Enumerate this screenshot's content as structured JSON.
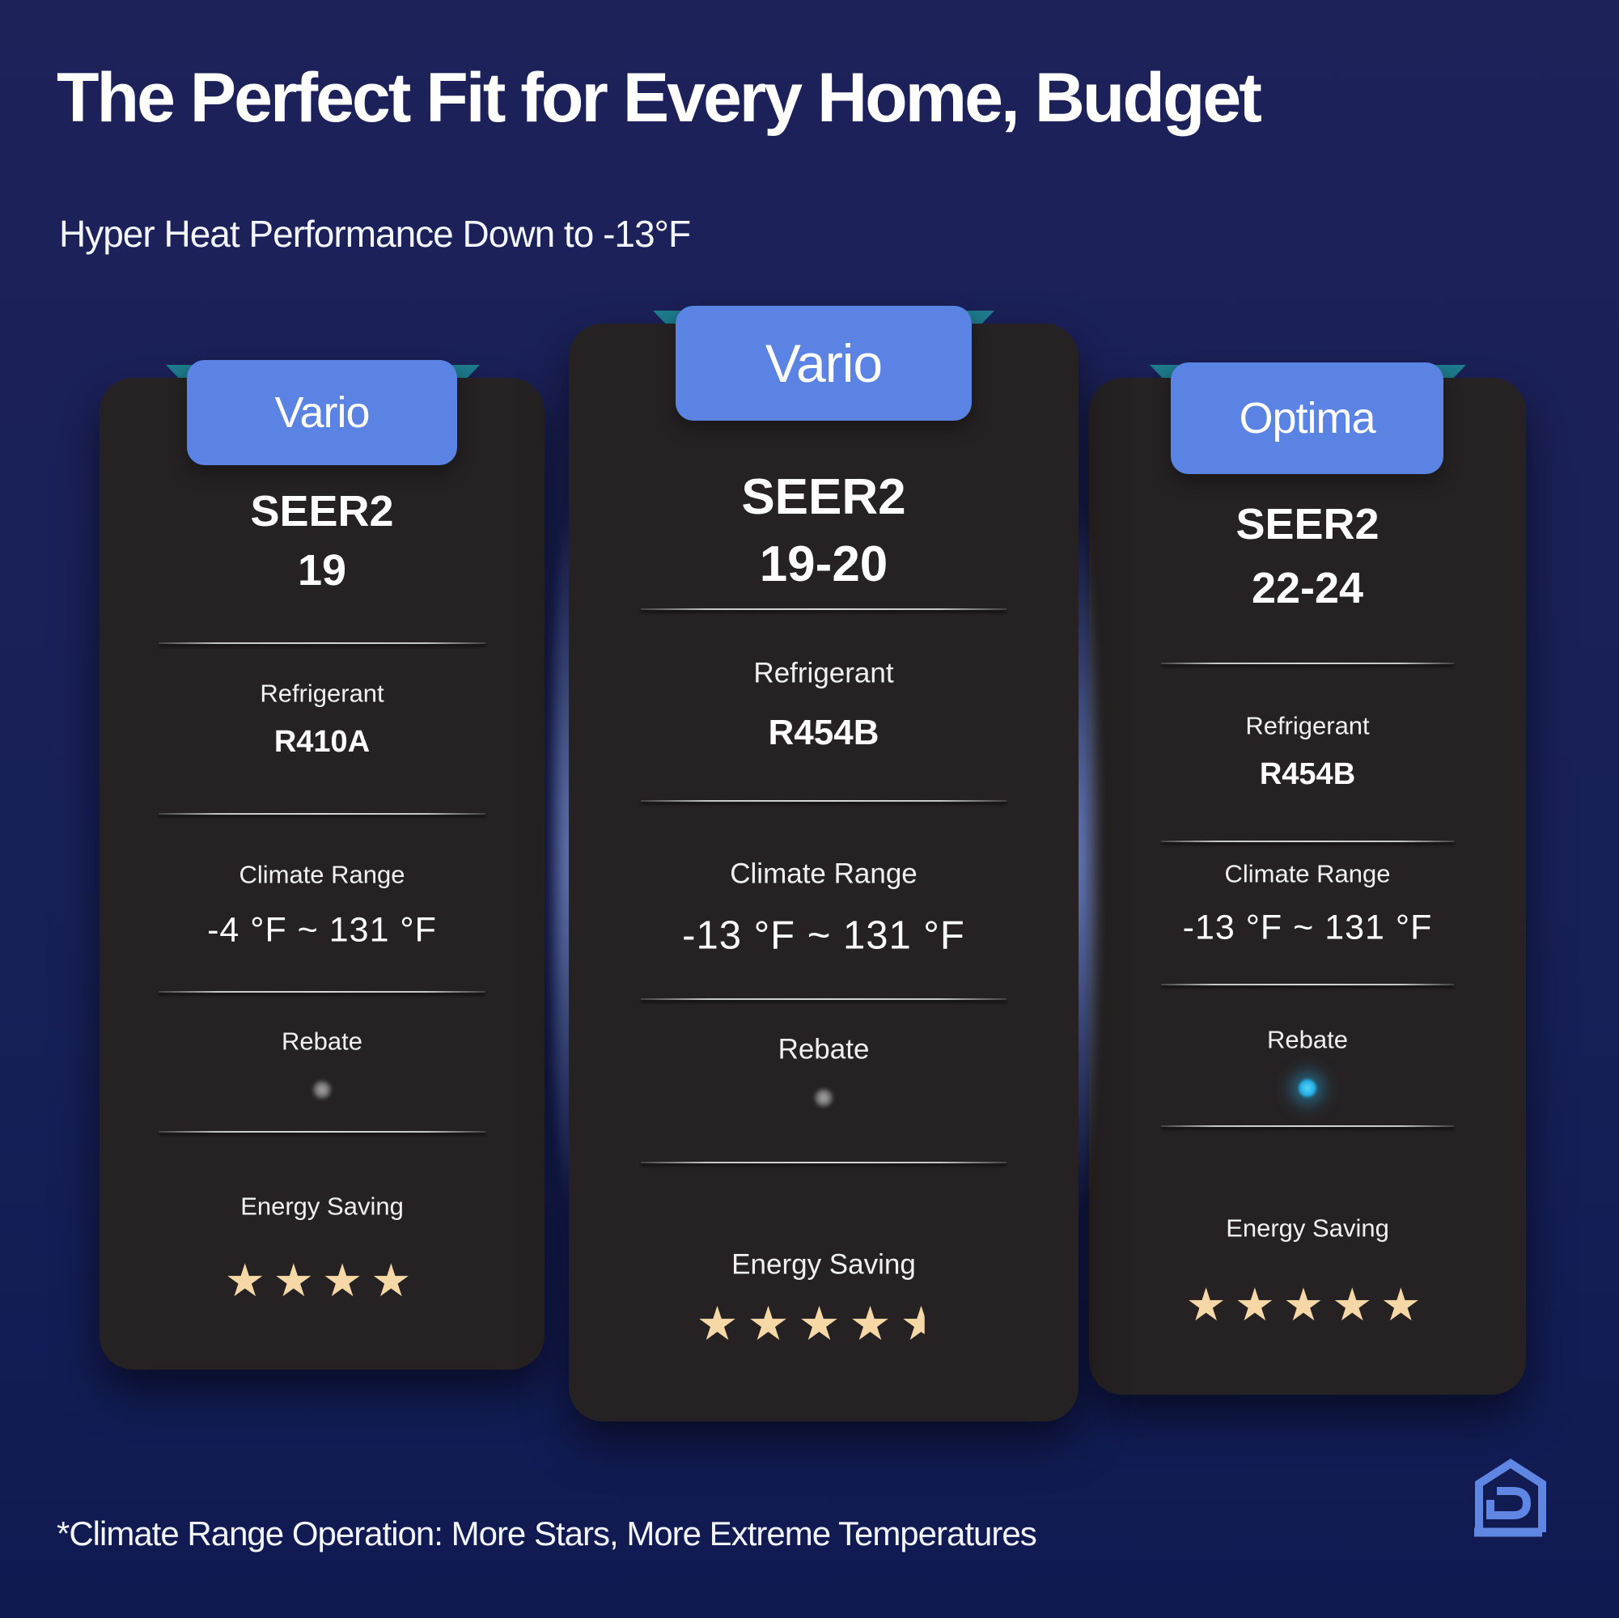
{
  "header": {
    "title": "The Perfect Fit for Every Home, Budget",
    "subtitle": "Hyper Heat Performance Down to -13°F"
  },
  "cards": [
    {
      "tier": "Vario",
      "seer_label": "SEER2",
      "seer_value": "19",
      "refrigerant_label": "Refrigerant",
      "refrigerant_value": "R410A",
      "climate_label": "Climate Range",
      "climate_value": "-4 °F ~ 131 °F",
      "rebate_label": "Rebate",
      "rebate_indicator": "gray",
      "energy_label": "Energy Saving",
      "energy_stars": 4
    },
    {
      "tier": "Vario",
      "seer_label": "SEER2",
      "seer_value": "19-20",
      "refrigerant_label": "Refrigerant",
      "refrigerant_value": "R454B",
      "climate_label": "Climate Range",
      "climate_value": "-13 °F ~ 131 °F",
      "rebate_label": "Rebate",
      "rebate_indicator": "gray",
      "energy_label": "Energy Saving",
      "energy_stars": 4.5
    },
    {
      "tier": "Optima",
      "seer_label": "SEER2",
      "seer_value": "22-24",
      "refrigerant_label": "Refrigerant",
      "refrigerant_value": "R454B",
      "climate_label": "Climate Range",
      "climate_value": "-13 °F ~ 131 °F",
      "rebate_label": "Rebate",
      "rebate_indicator": "cyan",
      "energy_label": "Energy Saving",
      "energy_stars": 5
    }
  ],
  "footer": {
    "note": "*Climate Range Operation: More Stars, More Extreme Temperatures"
  },
  "logo": {
    "name": "house-d-logo"
  },
  "colors": {
    "background_top": "#1d2259",
    "background_bottom": "#101a51",
    "card_background": "#262223",
    "badge_blue": "#5b83e4",
    "fold_teal": "#1f7f91",
    "star_cream": "#f6d8a6",
    "rebate_gray": "#8c8c8c",
    "rebate_cyan": "#29b5e8",
    "glow_blue": "#94b0ff",
    "logo_blue": "#5f86e2",
    "text_white": "#ffffff"
  }
}
